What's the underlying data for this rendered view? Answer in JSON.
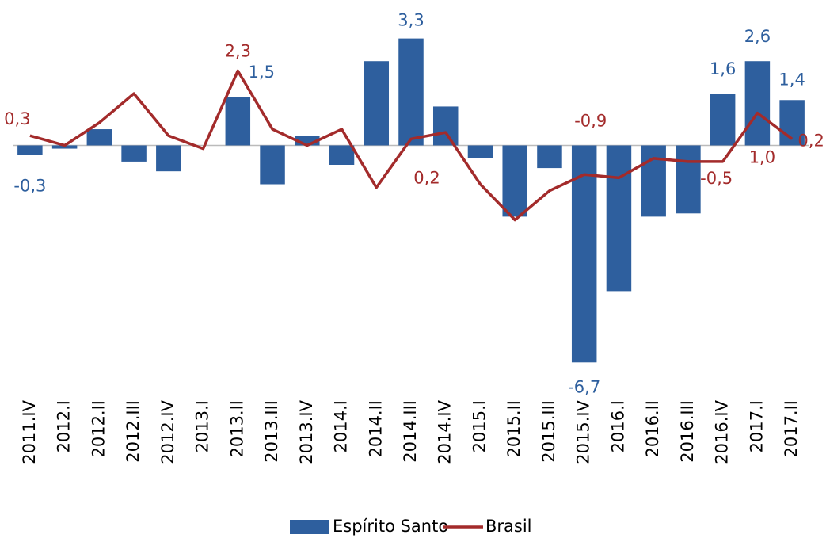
{
  "chart_data": {
    "type": "bar_line",
    "categories": [
      "2011.IV",
      "2012.I",
      "2012.II",
      "2012.III",
      "2012.IV",
      "2013.I",
      "2013.II",
      "2013.III",
      "2013.IV",
      "2014.I",
      "2014.II",
      "2014.III",
      "2014.IV",
      "2015.I",
      "2015.II",
      "2015.III",
      "2015.IV",
      "2016.I",
      "2016.II",
      "2016.III",
      "2016.IV",
      "2017.I",
      "2017.II"
    ],
    "series": [
      {
        "name": "Espírito Santo",
        "type": "bar",
        "color": "#2e5f9e",
        "values": [
          -0.3,
          -0.1,
          0.5,
          -0.5,
          -0.8,
          0.0,
          1.5,
          -1.2,
          0.3,
          -0.6,
          2.6,
          3.3,
          1.2,
          -0.4,
          -2.2,
          -0.7,
          -6.7,
          -4.5,
          -2.2,
          -2.1,
          1.6,
          2.6,
          1.4
        ],
        "value_labels": [
          "-0,3",
          null,
          null,
          null,
          null,
          null,
          "1,5",
          null,
          null,
          null,
          null,
          "3,3",
          null,
          null,
          null,
          null,
          "-6,7",
          null,
          null,
          null,
          "1,6",
          "2,6",
          "1,4"
        ]
      },
      {
        "name": "Brasil",
        "type": "line",
        "color": "#a32b2b",
        "values": [
          0.3,
          0.0,
          0.7,
          1.6,
          0.3,
          -0.1,
          2.3,
          0.5,
          0.0,
          0.5,
          -1.3,
          0.2,
          0.4,
          -1.2,
          -2.3,
          -1.4,
          -0.9,
          -1.0,
          -0.4,
          -0.5,
          -0.5,
          1.0,
          0.2
        ],
        "value_labels": [
          "0,3",
          null,
          null,
          null,
          null,
          null,
          "2,3",
          null,
          null,
          null,
          null,
          "0,2",
          null,
          null,
          null,
          null,
          "-0,9",
          null,
          null,
          null,
          "-0,5",
          "1,0",
          "0,2"
        ]
      }
    ],
    "ylim": [
      -7.5,
      4.0
    ],
    "legend": "bottom"
  }
}
